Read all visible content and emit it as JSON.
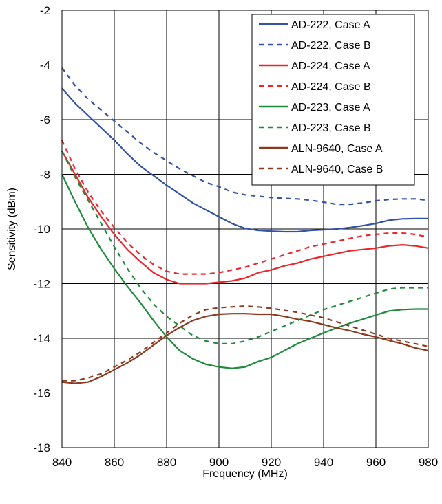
{
  "chart_data": {
    "type": "line",
    "xlabel": "Frequency (MHz)",
    "ylabel": "Sensitivity (dBm)",
    "xlim": [
      840,
      980
    ],
    "ylim": [
      -18,
      -2
    ],
    "xticks": [
      840,
      860,
      880,
      900,
      920,
      940,
      960,
      980
    ],
    "yticks": [
      -2,
      -4,
      -6,
      -8,
      -10,
      -12,
      -14,
      -16,
      -18
    ],
    "grid": true,
    "legend_position": "top-right",
    "series": [
      {
        "name": "AD-222, Case A",
        "color": "#3153a3",
        "dash": "solid",
        "x": [
          840,
          845,
          850,
          855,
          860,
          865,
          870,
          875,
          880,
          885,
          890,
          895,
          900,
          905,
          910,
          915,
          920,
          925,
          930,
          935,
          940,
          945,
          950,
          955,
          960,
          965,
          970,
          975,
          980
        ],
        "y": [
          -4.85,
          -5.4,
          -5.85,
          -6.3,
          -6.75,
          -7.25,
          -7.7,
          -8.05,
          -8.4,
          -8.72,
          -9.05,
          -9.3,
          -9.55,
          -9.8,
          -9.98,
          -10.05,
          -10.08,
          -10.1,
          -10.1,
          -10.05,
          -10.03,
          -10.0,
          -9.95,
          -9.88,
          -9.8,
          -9.68,
          -9.63,
          -9.62,
          -9.62
        ]
      },
      {
        "name": "AD-222, Case B",
        "color": "#3153a3",
        "dash": "dashed",
        "x": [
          840,
          845,
          850,
          855,
          860,
          865,
          870,
          875,
          880,
          885,
          890,
          895,
          900,
          905,
          910,
          915,
          920,
          925,
          930,
          935,
          940,
          945,
          950,
          955,
          960,
          965,
          970,
          975,
          980
        ],
        "y": [
          -4.1,
          -4.75,
          -5.25,
          -5.65,
          -6.05,
          -6.45,
          -6.85,
          -7.2,
          -7.5,
          -7.8,
          -8.05,
          -8.3,
          -8.45,
          -8.65,
          -8.75,
          -8.8,
          -8.85,
          -8.88,
          -8.9,
          -8.95,
          -9.02,
          -9.1,
          -9.1,
          -9.05,
          -8.97,
          -8.92,
          -8.9,
          -8.9,
          -8.95
        ]
      },
      {
        "name": "AD-224, Case A",
        "color": "#e8262b",
        "dash": "solid",
        "x": [
          840,
          845,
          850,
          855,
          860,
          865,
          870,
          875,
          880,
          885,
          890,
          895,
          900,
          905,
          910,
          915,
          920,
          925,
          930,
          935,
          940,
          945,
          950,
          955,
          960,
          965,
          970,
          975,
          980
        ],
        "y": [
          -7.15,
          -8.0,
          -8.85,
          -9.55,
          -10.2,
          -10.75,
          -11.2,
          -11.6,
          -11.85,
          -12.0,
          -12.0,
          -12.0,
          -11.95,
          -11.9,
          -11.8,
          -11.6,
          -11.5,
          -11.35,
          -11.25,
          -11.1,
          -11.0,
          -10.9,
          -10.8,
          -10.75,
          -10.7,
          -10.62,
          -10.58,
          -10.62,
          -10.7
        ]
      },
      {
        "name": "AD-224, Case B",
        "color": "#e8262b",
        "dash": "dashed",
        "x": [
          840,
          845,
          850,
          855,
          860,
          865,
          870,
          875,
          880,
          885,
          890,
          895,
          900,
          905,
          910,
          915,
          920,
          925,
          930,
          935,
          940,
          945,
          950,
          955,
          960,
          965,
          970,
          975,
          980
        ],
        "y": [
          -6.75,
          -7.8,
          -8.65,
          -9.35,
          -9.95,
          -10.5,
          -10.95,
          -11.3,
          -11.55,
          -11.65,
          -11.65,
          -11.65,
          -11.6,
          -11.5,
          -11.4,
          -11.25,
          -11.1,
          -10.95,
          -10.8,
          -10.65,
          -10.55,
          -10.45,
          -10.35,
          -10.25,
          -10.2,
          -10.15,
          -10.15,
          -10.2,
          -10.3
        ]
      },
      {
        "name": "AD-223, Case A",
        "color": "#1e8b3c",
        "dash": "solid",
        "x": [
          840,
          845,
          850,
          855,
          860,
          865,
          870,
          875,
          880,
          885,
          890,
          895,
          900,
          905,
          910,
          915,
          920,
          925,
          930,
          935,
          940,
          945,
          950,
          955,
          960,
          965,
          970,
          975,
          980
        ],
        "y": [
          -8.0,
          -9.0,
          -9.95,
          -10.75,
          -11.45,
          -12.1,
          -12.7,
          -13.35,
          -13.95,
          -14.45,
          -14.75,
          -14.95,
          -15.05,
          -15.1,
          -15.05,
          -14.85,
          -14.7,
          -14.45,
          -14.2,
          -14.0,
          -13.8,
          -13.62,
          -13.45,
          -13.3,
          -13.15,
          -13.0,
          -12.95,
          -12.93,
          -12.93
        ]
      },
      {
        "name": "AD-223, Case B",
        "color": "#1e8b3c",
        "dash": "dashed",
        "x": [
          840,
          845,
          850,
          855,
          860,
          865,
          870,
          875,
          880,
          885,
          890,
          895,
          900,
          905,
          910,
          915,
          920,
          925,
          930,
          935,
          940,
          945,
          950,
          955,
          960,
          965,
          970,
          975,
          980
        ],
        "y": [
          -7.15,
          -8.1,
          -8.95,
          -9.8,
          -10.65,
          -11.45,
          -12.15,
          -12.75,
          -13.2,
          -13.55,
          -13.9,
          -14.1,
          -14.2,
          -14.2,
          -14.1,
          -13.95,
          -13.75,
          -13.55,
          -13.35,
          -13.15,
          -12.95,
          -12.8,
          -12.65,
          -12.5,
          -12.35,
          -12.2,
          -12.15,
          -12.15,
          -12.15
        ]
      },
      {
        "name": "ALN-9640, Case A",
        "color": "#8b3a1e",
        "dash": "solid",
        "x": [
          840,
          845,
          850,
          855,
          860,
          865,
          870,
          875,
          880,
          885,
          890,
          895,
          900,
          905,
          910,
          915,
          920,
          925,
          930,
          935,
          940,
          945,
          950,
          955,
          960,
          965,
          970,
          975,
          980
        ],
        "y": [
          -15.6,
          -15.65,
          -15.6,
          -15.4,
          -15.15,
          -14.9,
          -14.6,
          -14.25,
          -13.9,
          -13.6,
          -13.35,
          -13.2,
          -13.12,
          -13.1,
          -13.1,
          -13.12,
          -13.12,
          -13.2,
          -13.3,
          -13.38,
          -13.5,
          -13.62,
          -13.72,
          -13.85,
          -13.95,
          -14.08,
          -14.2,
          -14.35,
          -14.45
        ]
      },
      {
        "name": "ALN-9640, Case B",
        "color": "#8b3a1e",
        "dash": "dashed",
        "x": [
          840,
          845,
          850,
          855,
          860,
          865,
          870,
          875,
          880,
          885,
          890,
          895,
          900,
          905,
          910,
          915,
          920,
          925,
          930,
          935,
          940,
          945,
          950,
          955,
          960,
          965,
          970,
          975,
          980
        ],
        "y": [
          -15.55,
          -15.55,
          -15.45,
          -15.3,
          -15.05,
          -14.8,
          -14.5,
          -14.15,
          -13.8,
          -13.45,
          -13.15,
          -12.95,
          -12.88,
          -12.85,
          -12.82,
          -12.85,
          -12.9,
          -12.98,
          -13.05,
          -13.15,
          -13.25,
          -13.4,
          -13.55,
          -13.7,
          -13.85,
          -14.0,
          -14.1,
          -14.2,
          -14.3
        ]
      }
    ]
  }
}
